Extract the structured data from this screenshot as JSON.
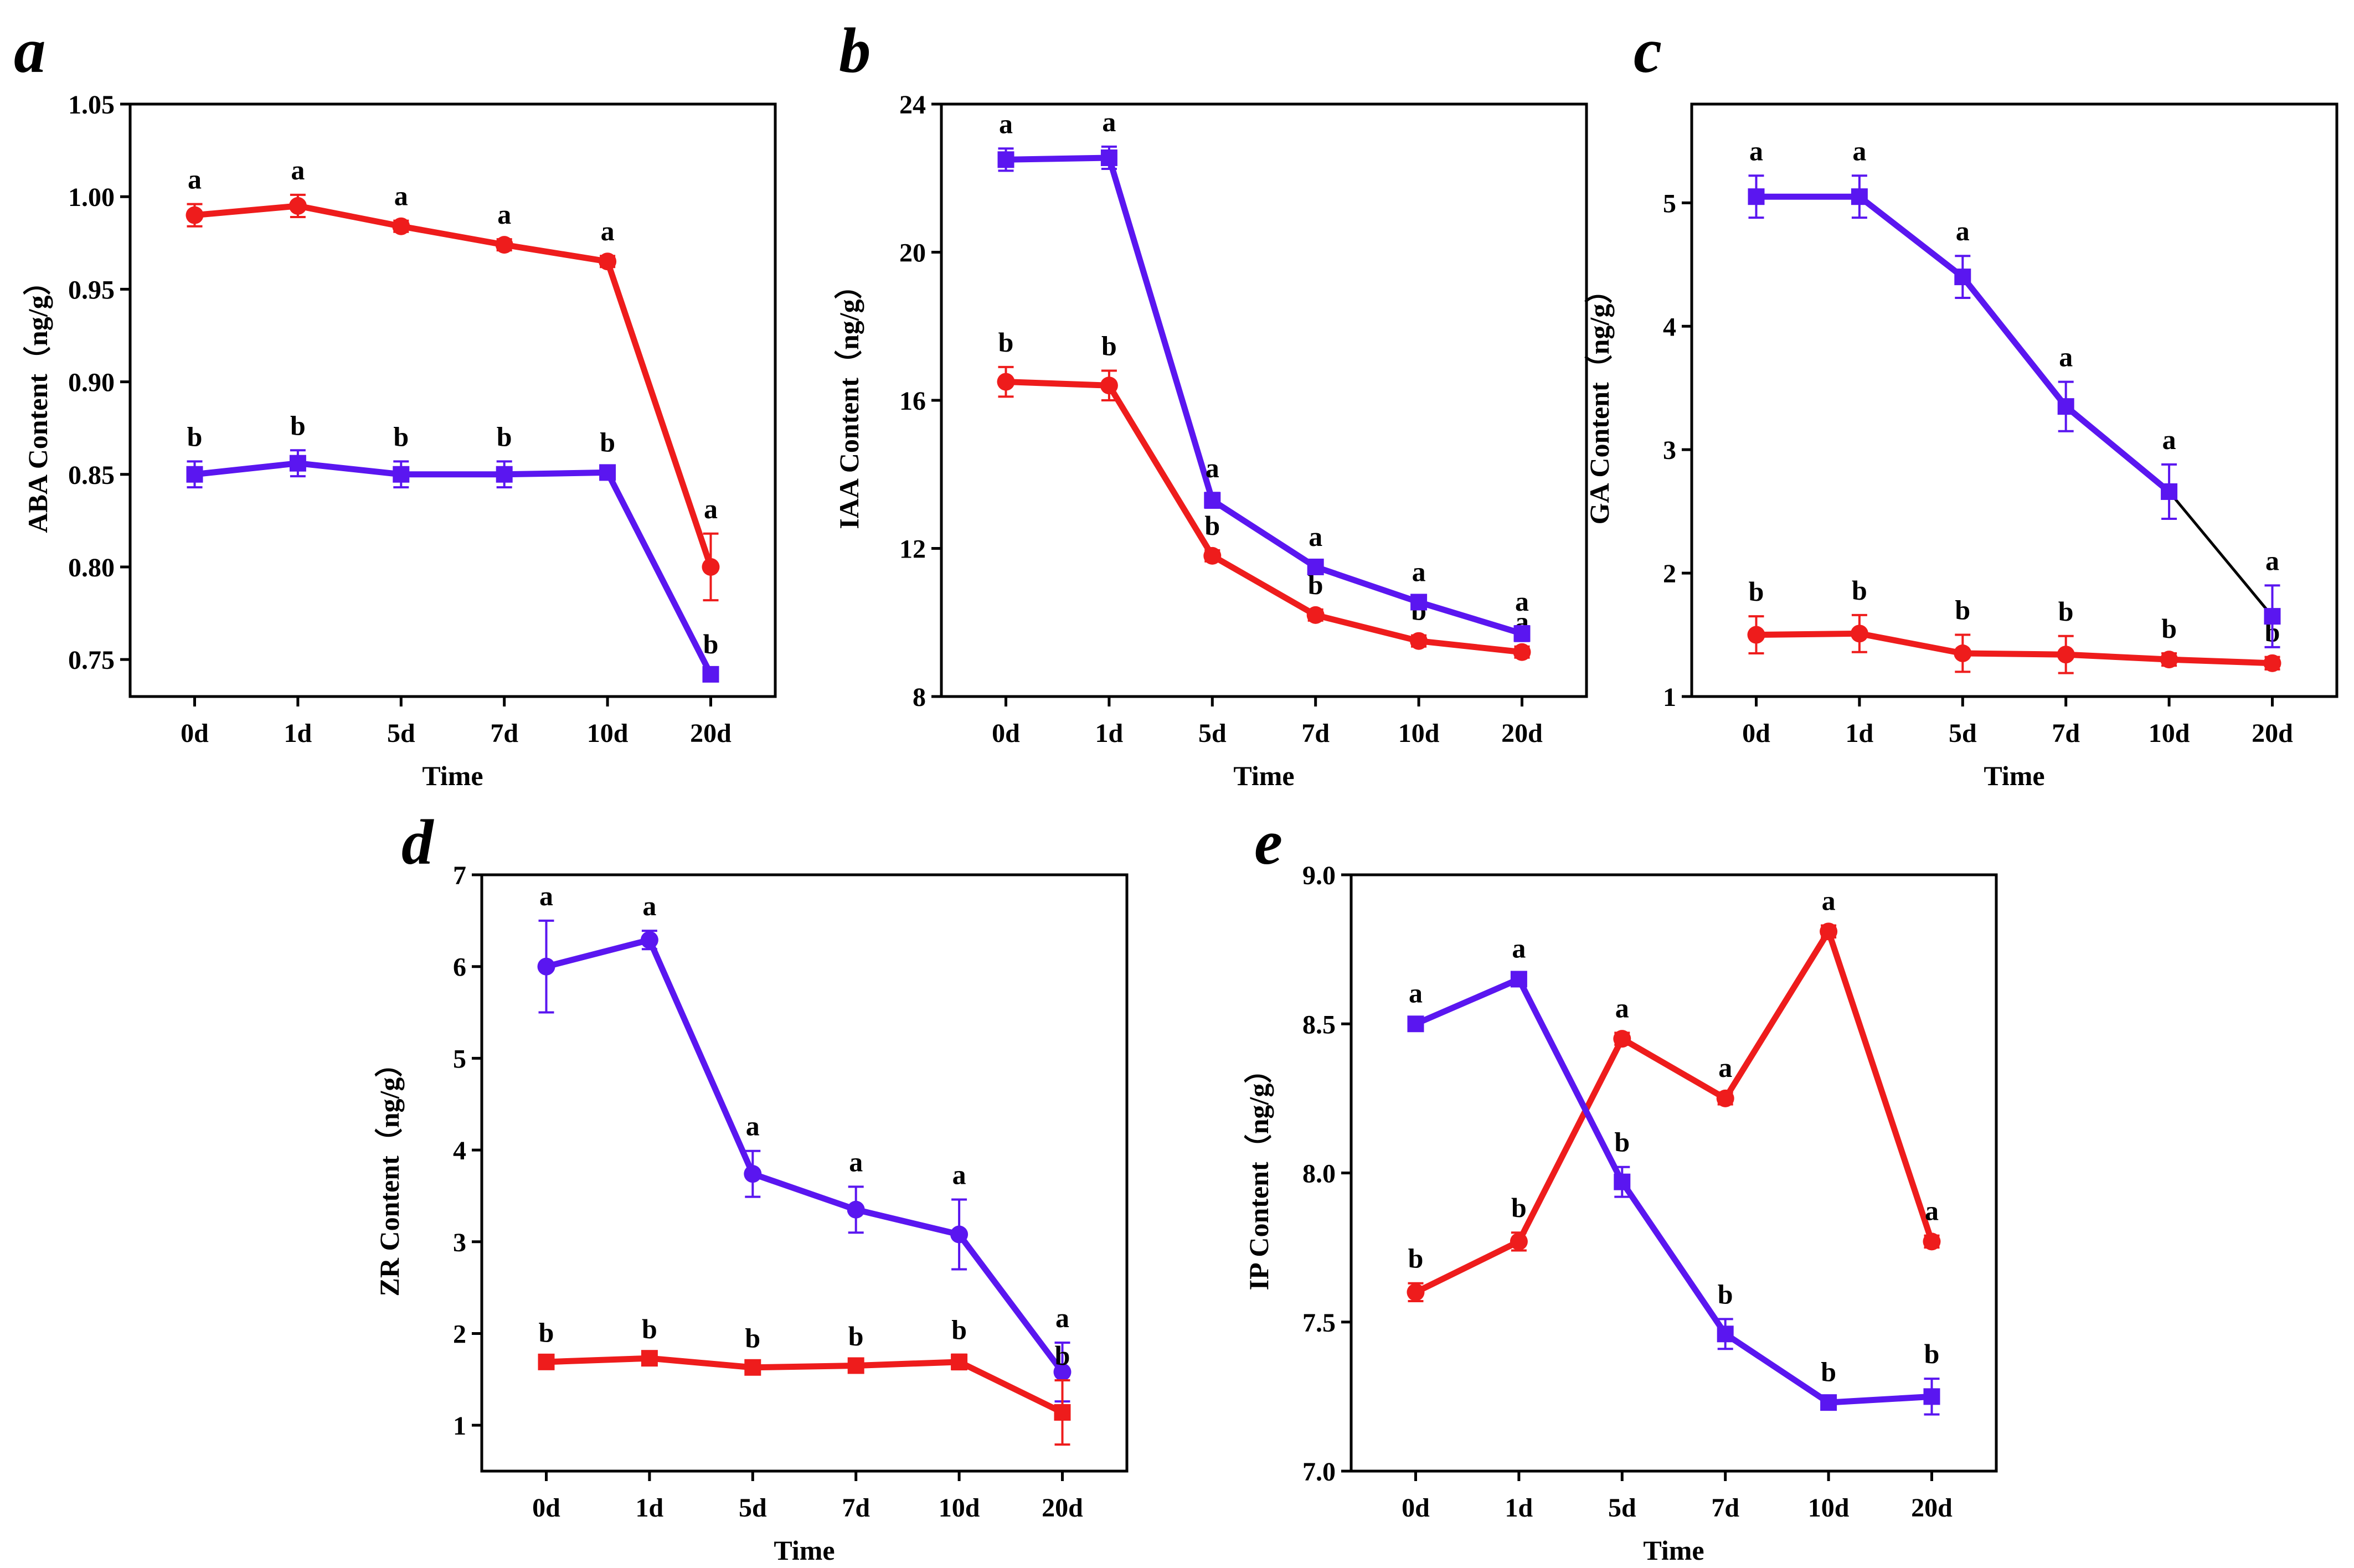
{
  "figure": {
    "colors": {
      "red": "#ee1c1c",
      "purple": "#5a16f0",
      "axis": "#000000",
      "link": "#000000"
    }
  },
  "chart_data": [
    {
      "panel": "a",
      "type": "line",
      "x_kind": "time",
      "xlabel": "Time",
      "ylabel": "ABA Content（ng/g）",
      "categories": [
        "0d",
        "1d",
        "5d",
        "7d",
        "10d",
        "20d"
      ],
      "ylim": [
        0.73,
        1.05
      ],
      "yticks": [
        0.75,
        0.8,
        0.85,
        0.9,
        0.95,
        1.0,
        1.05
      ],
      "ytick_decimals": 2,
      "series": [
        {
          "color": "red",
          "marker": "circle",
          "values": [
            0.99,
            0.995,
            0.984,
            0.974,
            0.965,
            0.8
          ],
          "errors": [
            0.006,
            0.006,
            0.003,
            0.003,
            0.003,
            0.018
          ],
          "letters": [
            "a",
            "a",
            "a",
            "a",
            "a",
            "a"
          ]
        },
        {
          "color": "purple",
          "marker": "square",
          "values": [
            0.85,
            0.856,
            0.85,
            0.85,
            0.851,
            0.742
          ],
          "errors": [
            0.007,
            0.007,
            0.007,
            0.007,
            0.003,
            0.003
          ],
          "letters": [
            "b",
            "b",
            "b",
            "b",
            "b",
            "b"
          ]
        }
      ]
    },
    {
      "panel": "b",
      "type": "line",
      "x_kind": "time",
      "xlabel": "Time",
      "ylabel": "IAA Content（ng/g）",
      "categories": [
        "0d",
        "1d",
        "5d",
        "7d",
        "10d",
        "20d"
      ],
      "ylim": [
        8,
        24
      ],
      "yticks": [
        8,
        12,
        16,
        20,
        24
      ],
      "ytick_decimals": 0,
      "series": [
        {
          "color": "red",
          "marker": "circle",
          "values": [
            16.5,
            16.4,
            11.8,
            10.2,
            9.5,
            9.2
          ],
          "errors": [
            0.4,
            0.4,
            0.15,
            0.15,
            0.15,
            0.15
          ],
          "letters": [
            "b",
            "b",
            "b",
            "b",
            "b",
            "a"
          ]
        },
        {
          "color": "purple",
          "marker": "square",
          "values": [
            22.5,
            22.55,
            13.3,
            11.5,
            10.55,
            9.7
          ],
          "errors": [
            0.3,
            0.3,
            0.2,
            0.15,
            0.15,
            0.2
          ],
          "letters": [
            "a",
            "a",
            "a",
            "a",
            "a",
            "a"
          ]
        }
      ]
    },
    {
      "panel": "c",
      "type": "line",
      "x_kind": "time",
      "xlabel": "Time",
      "ylabel": "GA Content（ng/g）",
      "categories": [
        "0d",
        "1d",
        "5d",
        "7d",
        "10d",
        "20d"
      ],
      "ylim": [
        1,
        5.8
      ],
      "yticks": [
        1,
        2,
        3,
        4,
        5
      ],
      "ytick_decimals": 0,
      "series": [
        {
          "color": "red",
          "marker": "circle",
          "values": [
            1.5,
            1.51,
            1.35,
            1.34,
            1.3,
            1.27
          ],
          "errors": [
            0.15,
            0.15,
            0.15,
            0.15,
            0.05,
            0.05
          ],
          "letters": [
            "b",
            "b",
            "b",
            "b",
            "b",
            "b"
          ]
        },
        {
          "color": "purple",
          "marker": "square",
          "values": [
            5.05,
            5.05,
            4.4,
            3.35,
            2.66,
            1.65
          ],
          "errors": [
            0.17,
            0.17,
            0.17,
            0.2,
            0.22,
            0.25
          ],
          "letters": [
            "a",
            "a",
            "a",
            "a",
            "a",
            "a"
          ],
          "last_segment_color": "link"
        }
      ]
    },
    {
      "panel": "d",
      "type": "line",
      "x_kind": "time",
      "xlabel": "Time",
      "ylabel": "ZR Content（ng/g）",
      "categories": [
        "0d",
        "1d",
        "5d",
        "7d",
        "10d",
        "20d"
      ],
      "ylim": [
        0.5,
        7
      ],
      "yticks": [
        1,
        2,
        3,
        4,
        5,
        6,
        7
      ],
      "ytick_decimals": 0,
      "series": [
        {
          "color": "purple",
          "marker": "circle",
          "values": [
            6.0,
            6.29,
            3.74,
            3.35,
            3.08,
            1.58
          ],
          "errors": [
            0.5,
            0.1,
            0.25,
            0.25,
            0.38,
            0.32
          ],
          "letters": [
            "a",
            "a",
            "a",
            "a",
            "a",
            "a"
          ]
        },
        {
          "color": "red",
          "marker": "square",
          "values": [
            1.69,
            1.73,
            1.63,
            1.65,
            1.69,
            1.14
          ],
          "errors": [
            0.05,
            0.05,
            0.05,
            0.05,
            0.08,
            0.35
          ],
          "letters": [
            "b",
            "b",
            "b",
            "b",
            "b",
            "b"
          ]
        }
      ]
    },
    {
      "panel": "e",
      "type": "line",
      "x_kind": "time",
      "xlabel": "Time",
      "ylabel": "IP Content（ng/g）",
      "categories": [
        "0d",
        "1d",
        "5d",
        "7d",
        "10d",
        "20d"
      ],
      "ylim": [
        7.0,
        9.0
      ],
      "yticks": [
        7.0,
        7.5,
        8.0,
        8.5,
        9.0
      ],
      "ytick_decimals": 1,
      "series": [
        {
          "color": "red",
          "marker": "circle",
          "values": [
            7.6,
            7.77,
            8.45,
            8.25,
            8.81,
            7.77
          ],
          "errors": [
            0.03,
            0.03,
            0.02,
            0.02,
            0.02,
            0.02
          ],
          "letters": [
            "b",
            "b",
            "a",
            "a",
            "a",
            "a"
          ]
        },
        {
          "color": "purple",
          "marker": "square",
          "values": [
            8.5,
            8.65,
            7.97,
            7.46,
            7.23,
            7.25
          ],
          "errors": [
            0.02,
            0.02,
            0.05,
            0.05,
            0.02,
            0.06
          ],
          "letters": [
            "a",
            "a",
            "b",
            "b",
            "b",
            "b"
          ]
        }
      ]
    }
  ]
}
